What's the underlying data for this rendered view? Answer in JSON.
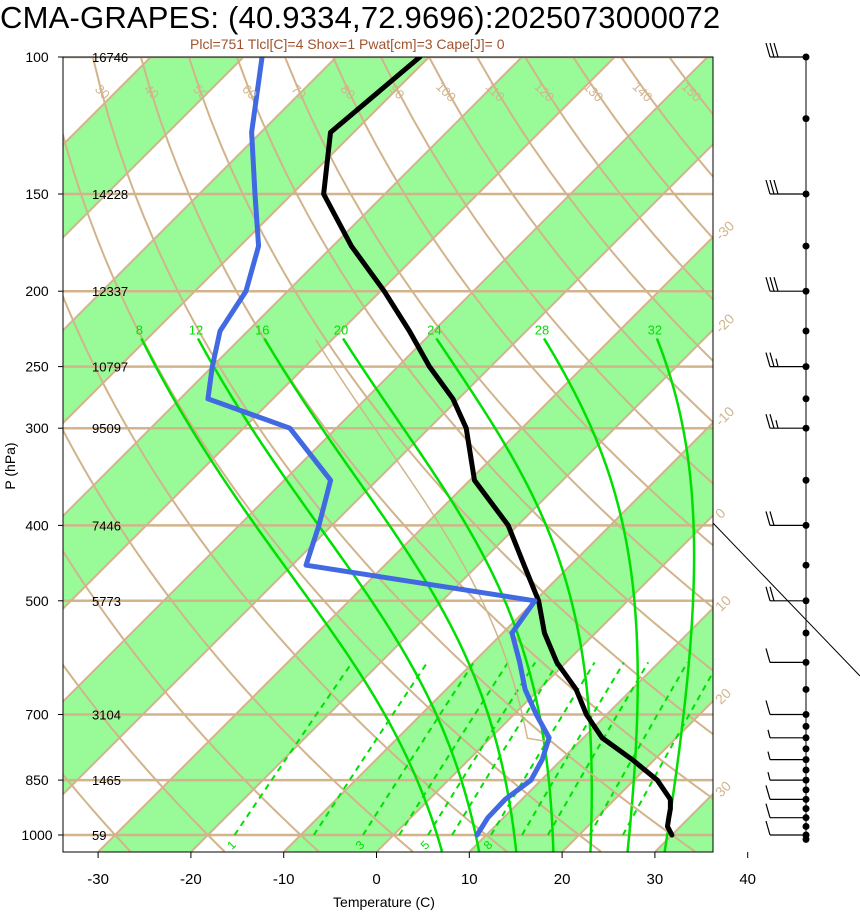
{
  "chart_data": {
    "type": "line",
    "title": "CMA-GRAPES: (40.9334,72.9696):2025073000072",
    "subtitle": "Plcl=751 Tlcl[C]=4 Shox=1 Pwat[cm]=3 Cape[J]= 0",
    "xlabel": "Temperature (C)",
    "ylabel": "P (hPa)",
    "x_scale": "skewed temperature",
    "y_scale": "log pressure",
    "xlim": [
      -35,
      40
    ],
    "ylim": [
      1050,
      100
    ],
    "x_ticks": [
      -30,
      -20,
      -10,
      0,
      10,
      20,
      30,
      40
    ],
    "pressure_levels": [
      {
        "p": 100,
        "height": "16746"
      },
      {
        "p": 150,
        "height": "14228"
      },
      {
        "p": 200,
        "height": "12337"
      },
      {
        "p": 250,
        "height": "10797"
      },
      {
        "p": 300,
        "height": "9509"
      },
      {
        "p": 400,
        "height": "7446"
      },
      {
        "p": 500,
        "height": "5773"
      },
      {
        "p": 700,
        "height": "3104"
      },
      {
        "p": 850,
        "height": "1465"
      },
      {
        "p": 1000,
        "height": "59"
      }
    ],
    "isotherm_labels": [
      -30,
      -20,
      -10,
      0,
      10,
      20,
      30,
      40
    ],
    "dry_adiabat_labels": [
      30,
      40,
      50,
      60,
      70,
      80,
      90,
      100,
      110,
      120,
      130,
      140,
      150,
      160
    ],
    "moist_adiabat_labels": [
      8,
      12,
      16,
      20,
      24,
      28,
      32
    ],
    "mixing_ratio_labels": [
      "1",
      "3",
      "5",
      "8"
    ],
    "series": [
      {
        "name": "temperature",
        "color": "#000000",
        "points": [
          {
            "p": 1000,
            "t": 30.0
          },
          {
            "p": 975,
            "t": 28.6
          },
          {
            "p": 950,
            "t": 27.8
          },
          {
            "p": 925,
            "t": 27.0
          },
          {
            "p": 900,
            "t": 26.0
          },
          {
            "p": 850,
            "t": 22.5
          },
          {
            "p": 800,
            "t": 17.6
          },
          {
            "p": 750,
            "t": 12.0
          },
          {
            "p": 700,
            "t": 7.8
          },
          {
            "p": 650,
            "t": 4.0
          },
          {
            "p": 600,
            "t": -1.0
          },
          {
            "p": 550,
            "t": -5.5
          },
          {
            "p": 500,
            "t": -9.6
          },
          {
            "p": 450,
            "t": -15.0
          },
          {
            "p": 400,
            "t": -21.0
          },
          {
            "p": 350,
            "t": -29.5
          },
          {
            "p": 300,
            "t": -36.0
          },
          {
            "p": 275,
            "t": -40.6
          },
          {
            "p": 250,
            "t": -46.6
          },
          {
            "p": 225,
            "t": -52.6
          },
          {
            "p": 200,
            "t": -59.6
          },
          {
            "p": 175,
            "t": -68.0
          },
          {
            "p": 150,
            "t": -76.6
          },
          {
            "p": 125,
            "t": -82.5
          },
          {
            "p": 100,
            "t": -81.0
          }
        ]
      },
      {
        "name": "dewpoint",
        "color": "#4169e1",
        "points": [
          {
            "p": 1000,
            "t": 9.0
          },
          {
            "p": 950,
            "t": 8.3
          },
          {
            "p": 900,
            "t": 8.2
          },
          {
            "p": 850,
            "t": 8.9
          },
          {
            "p": 800,
            "t": 7.9
          },
          {
            "p": 750,
            "t": 6.3
          },
          {
            "p": 700,
            "t": 2.4
          },
          {
            "p": 650,
            "t": -1.5
          },
          {
            "p": 600,
            "t": -5.0
          },
          {
            "p": 550,
            "t": -9.0
          },
          {
            "p": 500,
            "t": -10.0
          },
          {
            "p": 450,
            "t": -38.5
          },
          {
            "p": 400,
            "t": -41.4
          },
          {
            "p": 350,
            "t": -45.0
          },
          {
            "p": 300,
            "t": -55.0
          },
          {
            "p": 275,
            "t": -67.0
          },
          {
            "p": 250,
            "t": -70.0
          },
          {
            "p": 225,
            "t": -73.0
          },
          {
            "p": 200,
            "t": -74.5
          },
          {
            "p": 175,
            "t": -78.0
          },
          {
            "p": 150,
            "t": -84.0
          },
          {
            "p": 125,
            "t": -91.0
          },
          {
            "p": 100,
            "t": -98.0
          }
        ]
      }
    ],
    "parcel_path_color": "#d2b48c",
    "colors": {
      "background_band": "#98fb98",
      "grid": "#d2b48c",
      "moist_adiabat": "#00e000",
      "mixing_ratio": "#00e000",
      "subtitle": "#a0522d"
    },
    "wind_barbs": [
      {
        "p": 100,
        "knots": 30
      },
      {
        "p": 150,
        "knots": 30
      },
      {
        "p": 200,
        "knots": 30
      },
      {
        "p": 250,
        "knots": 25
      },
      {
        "p": 300,
        "knots": 25
      },
      {
        "p": 400,
        "knots": 20
      },
      {
        "p": 500,
        "knots": 20
      },
      {
        "p": 600,
        "knots": 10
      },
      {
        "p": 700,
        "knots": 10
      },
      {
        "p": 750,
        "knots": 5
      },
      {
        "p": 800,
        "knots": 5
      },
      {
        "p": 850,
        "knots": 5
      },
      {
        "p": 900,
        "knots": 10
      },
      {
        "p": 950,
        "knots": 10
      },
      {
        "p": 1000,
        "knots": 10
      }
    ]
  }
}
